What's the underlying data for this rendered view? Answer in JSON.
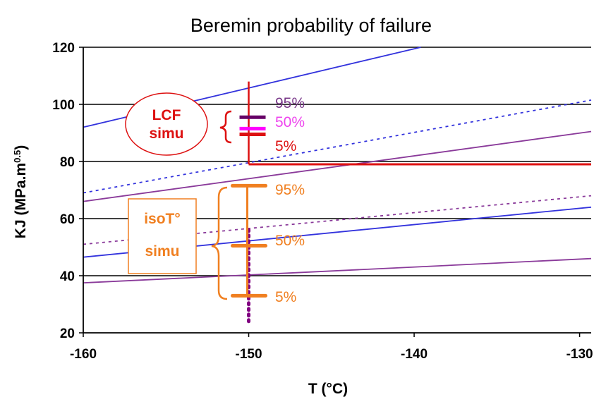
{
  "chart_data": {
    "type": "line",
    "title": "Beremin probability  of failure",
    "xlabel": "T (°C)",
    "ylabel_main": "KJ  (MPa.m",
    "ylabel_sup": "0.5",
    "ylabel_close": ")",
    "xlim": [
      -160,
      -129.3
    ],
    "ylim": [
      20,
      120
    ],
    "xticks": [
      -160,
      -150,
      -140,
      -130
    ],
    "xtick_labels": [
      "-160",
      "-150",
      "-140",
      "-130"
    ],
    "yticks": [
      20,
      40,
      60,
      80,
      100,
      120
    ],
    "ytick_labels": [
      "20",
      "40",
      "60",
      "80",
      "100",
      "120"
    ],
    "grid": "horizontal",
    "series": [
      {
        "color": "#3333dd",
        "style": "solid",
        "x": [
          -160,
          -139.6
        ],
        "y": [
          92,
          120
        ]
      },
      {
        "color": "#3333dd",
        "style": "dotted",
        "x": [
          -160,
          -129.3
        ],
        "y": [
          69,
          101.5
        ]
      },
      {
        "color": "#3333dd",
        "style": "solid",
        "x": [
          -160,
          -129.3
        ],
        "y": [
          46.5,
          64
        ]
      },
      {
        "color": "#8a3a9a",
        "style": "solid",
        "x": [
          -160,
          -129.3
        ],
        "y": [
          66,
          90.5
        ]
      },
      {
        "color": "#8a3a9a",
        "style": "dotted",
        "x": [
          -160,
          -129.3
        ],
        "y": [
          51,
          68
        ]
      },
      {
        "color": "#8a3a9a",
        "style": "solid",
        "x": [
          -160,
          -129.3
        ],
        "y": [
          37.5,
          46
        ]
      },
      {
        "color": "#dd1111",
        "style": "solid",
        "x": [
          -150,
          -129.3
        ],
        "y": [
          79,
          79
        ]
      }
    ],
    "markers_lcf": [
      {
        "label": "95%",
        "value": 95.5,
        "color": "#660066",
        "label_color": "#7a3a8a"
      },
      {
        "label": "50%",
        "value": 91.5,
        "color": "#ff00ff",
        "label_color": "#ee44ee"
      },
      {
        "label": "5%",
        "value": 89.5,
        "color": "#dd1111",
        "label_color": "#dd1111"
      }
    ],
    "markers_iso": [
      {
        "label": "95%",
        "value": 71.5,
        "color": "#f07f20",
        "label_color": "#f07f20"
      },
      {
        "label": "50%",
        "value": 50.5,
        "color": "#f07f20",
        "label_color": "#f07f20"
      },
      {
        "label": "5%",
        "value": 33,
        "color": "#f07f20",
        "label_color": "#f07f20"
      }
    ],
    "lcf_vline": {
      "x": -150,
      "y": [
        79,
        108
      ],
      "color": "#dd1111"
    },
    "iso_dots": {
      "x": -150,
      "y": [
        24,
        57
      ],
      "color": "#800080"
    },
    "annotations": {
      "lcf_line1": "LCF",
      "lcf_line2": "simu",
      "iso_line1": "isoT°",
      "iso_line2": "simu"
    },
    "colors": {
      "lcf": "#dd1111",
      "iso": "#f07f20",
      "blue": "#3333dd",
      "purple": "#8a3a9a"
    }
  }
}
